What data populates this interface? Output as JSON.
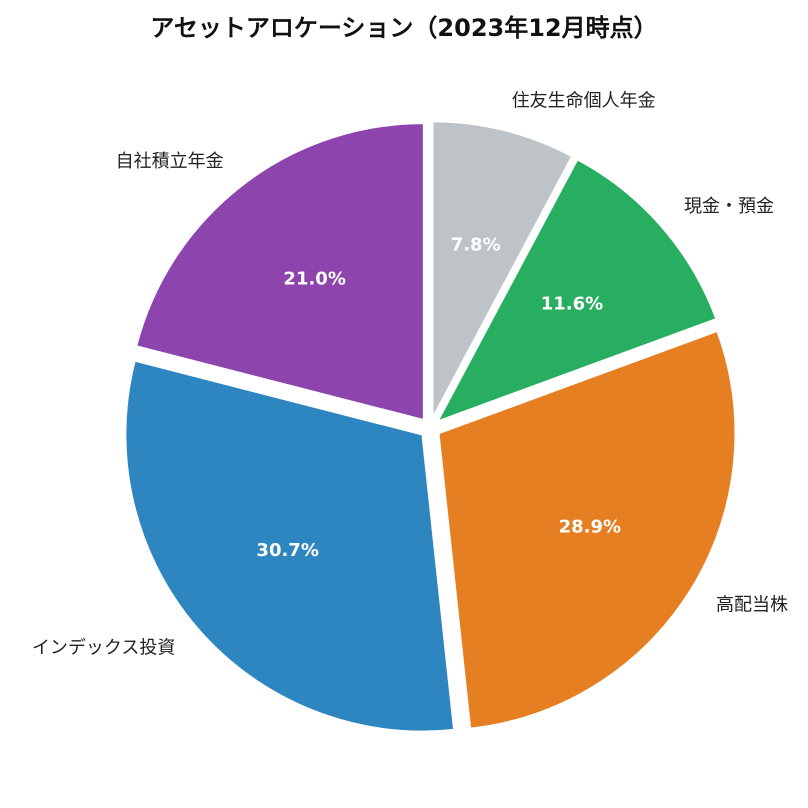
{
  "chart_data": {
    "type": "pie",
    "title": "アセットアロケーション（2023年12月時点）",
    "start_angle_deg": 90,
    "direction": "clockwise",
    "exploded": true,
    "slices": [
      {
        "label": "住友生命個人年金",
        "value": 7.8,
        "display": "7.8%",
        "color": "#bdc3c7"
      },
      {
        "label": "現金・預金",
        "value": 11.6,
        "display": "11.6%",
        "color": "#27ae60"
      },
      {
        "label": "高配当株",
        "value": 28.9,
        "display": "28.9%",
        "color": "#e67e22"
      },
      {
        "label": "インデックス投資",
        "value": 30.7,
        "display": "30.7%",
        "color": "#2e86c1"
      },
      {
        "label": "自社積立年金",
        "value": 21.0,
        "display": "21.0%",
        "color": "#8e44ad"
      }
    ]
  }
}
